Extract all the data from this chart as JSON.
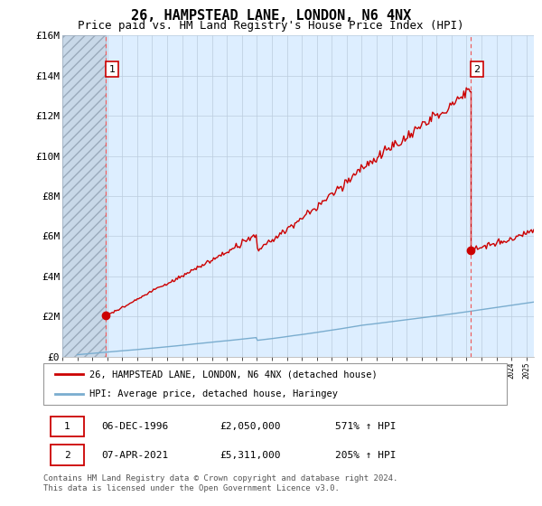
{
  "title": "26, HAMPSTEAD LANE, LONDON, N6 4NX",
  "subtitle": "Price paid vs. HM Land Registry's House Price Index (HPI)",
  "ylabel_ticks": [
    "£0",
    "£2M",
    "£4M",
    "£6M",
    "£8M",
    "£10M",
    "£12M",
    "£14M",
    "£16M"
  ],
  "ylim": [
    0,
    16000000
  ],
  "ytick_values": [
    0,
    2000000,
    4000000,
    6000000,
    8000000,
    10000000,
    12000000,
    14000000,
    16000000
  ],
  "xlim_start": 1994.0,
  "xlim_end": 2025.5,
  "sale1_x": 1996.92,
  "sale1_y": 2050000,
  "sale1_label": "1",
  "sale2_x": 2021.27,
  "sale2_y": 5311000,
  "sale2_label": "2",
  "sale_color": "#cc0000",
  "hpi_color": "#7aadcf",
  "vline_color": "#ee5555",
  "annotation_border_color": "#cc0000",
  "plot_bg_color": "#ddeeff",
  "hatch_color": "#aabbcc",
  "legend_label_red": "26, HAMPSTEAD LANE, LONDON, N6 4NX (detached house)",
  "legend_label_blue": "HPI: Average price, detached house, Haringey",
  "table_row1": [
    "1",
    "06-DEC-1996",
    "£2,050,000",
    "571% ↑ HPI"
  ],
  "table_row2": [
    "2",
    "07-APR-2021",
    "£5,311,000",
    "205% ↑ HPI"
  ],
  "footnote": "Contains HM Land Registry data © Crown copyright and database right 2024.\nThis data is licensed under the Open Government Licence v3.0.",
  "grid_color": "#bbccdd",
  "title_fontsize": 11,
  "subtitle_fontsize": 9,
  "axis_fontsize": 8
}
